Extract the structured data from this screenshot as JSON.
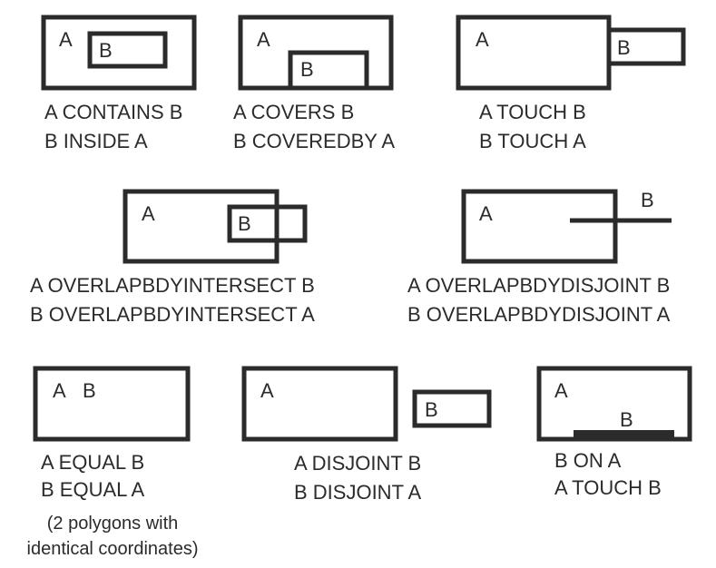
{
  "colors": {
    "ink": "#2b2b2b",
    "background": "#ffffff"
  },
  "panels": [
    {
      "id": "contains",
      "labels": {
        "a": "A",
        "b": "B"
      },
      "caption": [
        "A CONTAINS B",
        "B INSIDE A"
      ]
    },
    {
      "id": "covers",
      "labels": {
        "a": "A",
        "b": "B"
      },
      "caption": [
        "A COVERS B",
        "B COVEREDBY A"
      ]
    },
    {
      "id": "touch",
      "labels": {
        "a": "A",
        "b": "B"
      },
      "caption": [
        "A TOUCH B",
        "B TOUCH A"
      ]
    },
    {
      "id": "overlap-intersect",
      "labels": {
        "a": "A",
        "b": "B"
      },
      "caption": [
        "A OVERLAPBDYINTERSECT B",
        "B OVERLAPBDYINTERSECT A"
      ]
    },
    {
      "id": "overlap-disjoint",
      "labels": {
        "a": "A",
        "b": "B"
      },
      "caption": [
        "A OVERLAPBDYDISJOINT B",
        "B OVERLAPBDYDISJOINT A"
      ]
    },
    {
      "id": "equal",
      "labels": {
        "a": "A",
        "b": "B"
      },
      "caption": [
        "A EQUAL B",
        "B EQUAL A"
      ],
      "note": [
        "(2 polygons with",
        "identical coordinates)"
      ]
    },
    {
      "id": "disjoint",
      "labels": {
        "a": "A",
        "b": "B"
      },
      "caption": [
        "A DISJOINT B",
        "B DISJOINT A"
      ]
    },
    {
      "id": "on",
      "labels": {
        "a": "A",
        "b": "B"
      },
      "caption": [
        "B ON A",
        "A TOUCH B"
      ]
    }
  ]
}
